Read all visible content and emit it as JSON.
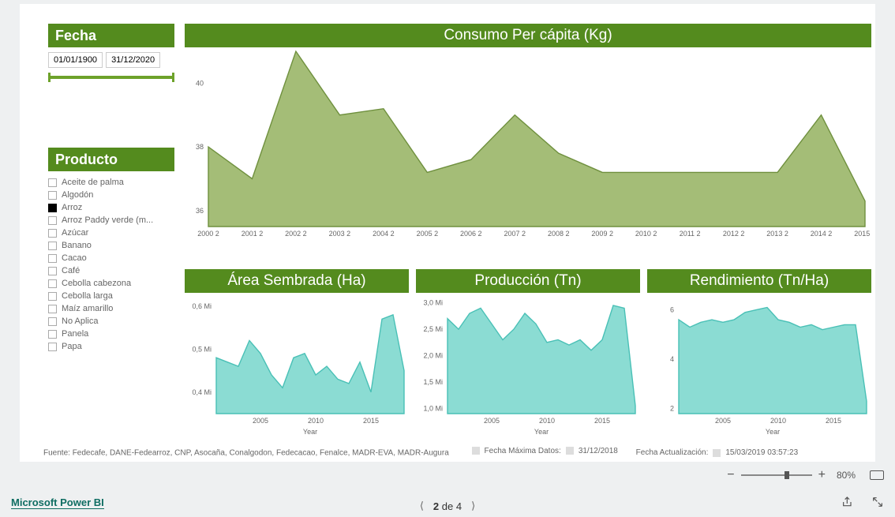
{
  "filters": {
    "fecha_label": "Fecha",
    "date_from": "01/01/1900",
    "date_to": "31/12/2020",
    "producto_label": "Producto",
    "productos": [
      {
        "label": "Aceite de palma",
        "checked": false
      },
      {
        "label": "Algodón",
        "checked": false
      },
      {
        "label": "Arroz",
        "checked": true
      },
      {
        "label": "Arroz Paddy verde (m...",
        "checked": false
      },
      {
        "label": "Azúcar",
        "checked": false
      },
      {
        "label": "Banano",
        "checked": false
      },
      {
        "label": "Cacao",
        "checked": false
      },
      {
        "label": "Café",
        "checked": false
      },
      {
        "label": "Cebolla cabezona",
        "checked": false
      },
      {
        "label": "Cebolla larga",
        "checked": false
      },
      {
        "label": "Maíz amarillo",
        "checked": false
      },
      {
        "label": "No Aplica",
        "checked": false
      },
      {
        "label": "Panela",
        "checked": false
      },
      {
        "label": "Papa",
        "checked": false
      }
    ]
  },
  "main_chart": {
    "title": "Consumo Per cápita (Kg)",
    "type": "area",
    "fill": "#a4bd77",
    "stroke": "#6f903e",
    "x_labels": [
      "2000 2",
      "2001 2",
      "2002 2",
      "2003 2",
      "2004 2",
      "2005 2",
      "2006 2",
      "2007 2",
      "2008 2",
      "2009 2",
      "2010 2",
      "2011 2",
      "2012 2",
      "2013 2",
      "2014 2",
      "2015 2"
    ],
    "y_ticks": [
      36,
      38,
      40
    ],
    "ylim": [
      35.5,
      41
    ],
    "values": [
      38.0,
      37.0,
      41.0,
      39.0,
      39.2,
      37.2,
      37.6,
      39.0,
      37.8,
      37.2,
      37.2,
      37.2,
      37.2,
      37.2,
      39.0,
      36.3
    ]
  },
  "small_charts": [
    {
      "title": "Área Sembrada (Ha)",
      "type": "area",
      "fill": "#8bdcd3",
      "stroke": "#49c0b6",
      "x_ticks": [
        "2005",
        "2010",
        "2015"
      ],
      "x_axis_title": "Year",
      "y_tick_labels": [
        "0,4 Mi",
        "0,5 Mi",
        "0,6 Mi"
      ],
      "y_tick_values": [
        0.4,
        0.5,
        0.6
      ],
      "ylim": [
        0.35,
        0.62
      ],
      "years": [
        2001,
        2002,
        2003,
        2004,
        2005,
        2006,
        2007,
        2008,
        2009,
        2010,
        2011,
        2012,
        2013,
        2014,
        2015,
        2016,
        2017,
        2018
      ],
      "values": [
        0.48,
        0.47,
        0.46,
        0.52,
        0.49,
        0.44,
        0.41,
        0.48,
        0.49,
        0.44,
        0.46,
        0.43,
        0.42,
        0.47,
        0.4,
        0.57,
        0.58,
        0.45
      ]
    },
    {
      "title": "Producción (Tn)",
      "type": "area",
      "fill": "#8bdcd3",
      "stroke": "#49c0b6",
      "x_ticks": [
        "2005",
        "2010",
        "2015"
      ],
      "x_axis_title": "Year",
      "y_tick_labels": [
        "1,0 Mi",
        "1,5 Mi",
        "2,0 Mi",
        "2,5 Mi",
        "3,0 Mi"
      ],
      "y_tick_values": [
        1.0,
        1.5,
        2.0,
        2.5,
        3.0
      ],
      "ylim": [
        0.9,
        3.1
      ],
      "years": [
        2001,
        2002,
        2003,
        2004,
        2005,
        2006,
        2007,
        2008,
        2009,
        2010,
        2011,
        2012,
        2013,
        2014,
        2015,
        2016,
        2017,
        2018
      ],
      "values": [
        2.7,
        2.5,
        2.8,
        2.9,
        2.6,
        2.3,
        2.5,
        2.8,
        2.6,
        2.25,
        2.3,
        2.2,
        2.3,
        2.1,
        2.3,
        2.95,
        2.9,
        1.05
      ]
    },
    {
      "title": "Rendimiento (Tn/Ha)",
      "type": "area",
      "fill": "#8bdcd3",
      "stroke": "#49c0b6",
      "x_ticks": [
        "2005",
        "2010",
        "2015"
      ],
      "x_axis_title": "Year",
      "y_tick_labels": [
        "2",
        "4",
        "6"
      ],
      "y_tick_values": [
        2,
        4,
        6
      ],
      "ylim": [
        1.8,
        6.5
      ],
      "years": [
        2001,
        2002,
        2003,
        2004,
        2005,
        2006,
        2007,
        2008,
        2009,
        2010,
        2011,
        2012,
        2013,
        2014,
        2015,
        2016,
        2017,
        2018
      ],
      "values": [
        5.6,
        5.3,
        5.5,
        5.6,
        5.5,
        5.6,
        5.9,
        6.0,
        6.1,
        5.6,
        5.5,
        5.3,
        5.4,
        5.2,
        5.3,
        5.4,
        5.4,
        2.3
      ]
    }
  ],
  "footer": {
    "source": "Fuente: Fedecafe, DANE-Fedearroz, CNP, Asocaña, Conalgodon, Fedecacao, Fenalce, MADR-EVA, MADR-Augura",
    "fecha_max_lbl": "Fecha Máxima Datos:",
    "fecha_max_val": "31/12/2018",
    "fecha_upd_lbl": "Fecha Actualización:",
    "fecha_upd_val": "15/03/2019 03:57:23"
  },
  "status": {
    "zoom_pct": "80%",
    "brand": "Microsoft Power BI",
    "page_current": "2",
    "page_sep": "de",
    "page_total": "4"
  }
}
